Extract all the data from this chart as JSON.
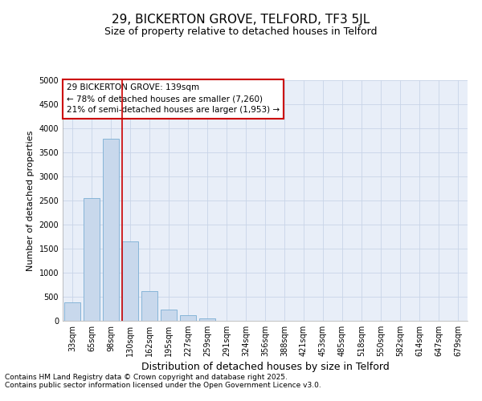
{
  "title1": "29, BICKERTON GROVE, TELFORD, TF3 5JL",
  "title2": "Size of property relative to detached houses in Telford",
  "xlabel": "Distribution of detached houses by size in Telford",
  "ylabel": "Number of detached properties",
  "categories": [
    "33sqm",
    "65sqm",
    "98sqm",
    "130sqm",
    "162sqm",
    "195sqm",
    "227sqm",
    "259sqm",
    "291sqm",
    "324sqm",
    "356sqm",
    "388sqm",
    "421sqm",
    "453sqm",
    "485sqm",
    "518sqm",
    "550sqm",
    "582sqm",
    "614sqm",
    "647sqm",
    "679sqm"
  ],
  "values": [
    380,
    2550,
    3780,
    1650,
    620,
    240,
    110,
    50,
    0,
    0,
    0,
    0,
    0,
    0,
    0,
    0,
    0,
    0,
    0,
    0,
    0
  ],
  "bar_color": "#c8d8ec",
  "bar_edge_color": "#7aaed4",
  "grid_color": "#c8d4e8",
  "background_color": "#ffffff",
  "plot_bg_color": "#e8eef8",
  "annotation_box_color": "#ffffff",
  "annotation_box_edge": "#cc0000",
  "vline_color": "#cc0000",
  "vline_x_index": 3,
  "annotation_line1": "29 BICKERTON GROVE: 139sqm",
  "annotation_line2": "← 78% of detached houses are smaller (7,260)",
  "annotation_line3": "21% of semi-detached houses are larger (1,953) →",
  "ylim": [
    0,
    5000
  ],
  "yticks": [
    0,
    500,
    1000,
    1500,
    2000,
    2500,
    3000,
    3500,
    4000,
    4500,
    5000
  ],
  "footer1": "Contains HM Land Registry data © Crown copyright and database right 2025.",
  "footer2": "Contains public sector information licensed under the Open Government Licence v3.0.",
  "title1_fontsize": 11,
  "title2_fontsize": 9,
  "xlabel_fontsize": 9,
  "ylabel_fontsize": 8,
  "tick_fontsize": 7,
  "annotation_fontsize": 7.5,
  "footer_fontsize": 6.5
}
